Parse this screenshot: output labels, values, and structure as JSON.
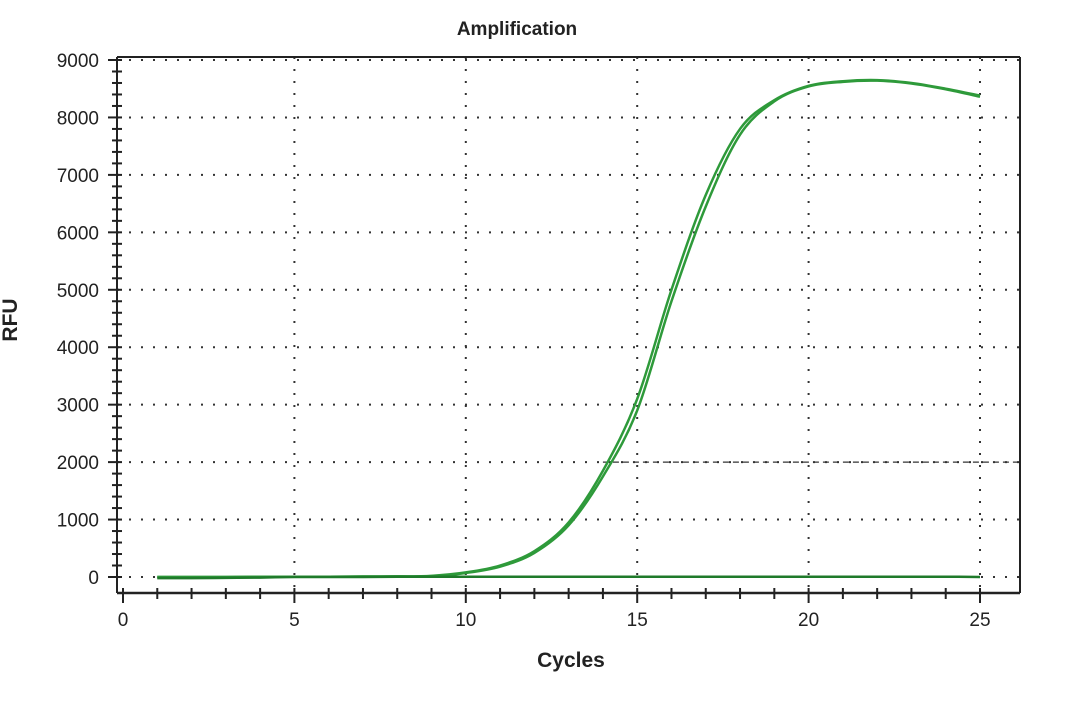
{
  "chart_data": {
    "type": "line",
    "title": "Amplification",
    "xlabel": "Cycles",
    "ylabel": "RFU",
    "xlim": [
      0,
      26
    ],
    "ylim": [
      -300,
      9000
    ],
    "xticks": [
      0,
      5,
      10,
      15,
      20,
      25
    ],
    "yticks": [
      0,
      1000,
      2000,
      3000,
      4000,
      5000,
      6000,
      7000,
      8000,
      9000
    ],
    "grid": true,
    "threshold": 2000,
    "threshold_start_cycle": 14,
    "x": [
      1,
      2,
      3,
      4,
      5,
      6,
      7,
      8,
      9,
      10,
      11,
      12,
      13,
      14,
      15,
      16,
      17,
      18,
      19,
      20,
      21,
      22,
      23,
      24,
      25
    ],
    "series": [
      {
        "color": "#2e9a3a",
        "values": [
          0,
          0,
          0,
          5,
          5,
          5,
          8,
          10,
          20,
          80,
          200,
          450,
          950,
          1850,
          3100,
          5000,
          6650,
          7800,
          8300,
          8550,
          8630,
          8650,
          8600,
          8500,
          8380
        ]
      },
      {
        "color": "#2e9a3a",
        "values": [
          0,
          0,
          0,
          5,
          5,
          5,
          8,
          10,
          15,
          70,
          180,
          420,
          900,
          1750,
          2900,
          4800,
          6450,
          7700,
          8280,
          8540,
          8620,
          8640,
          8590,
          8490,
          8360
        ]
      },
      {
        "color": "#1f7a2a",
        "values": [
          -20,
          -20,
          -15,
          -10,
          0,
          0,
          0,
          5,
          5,
          5,
          5,
          5,
          5,
          5,
          5,
          5,
          5,
          5,
          5,
          5,
          5,
          5,
          5,
          5,
          0
        ]
      }
    ]
  }
}
